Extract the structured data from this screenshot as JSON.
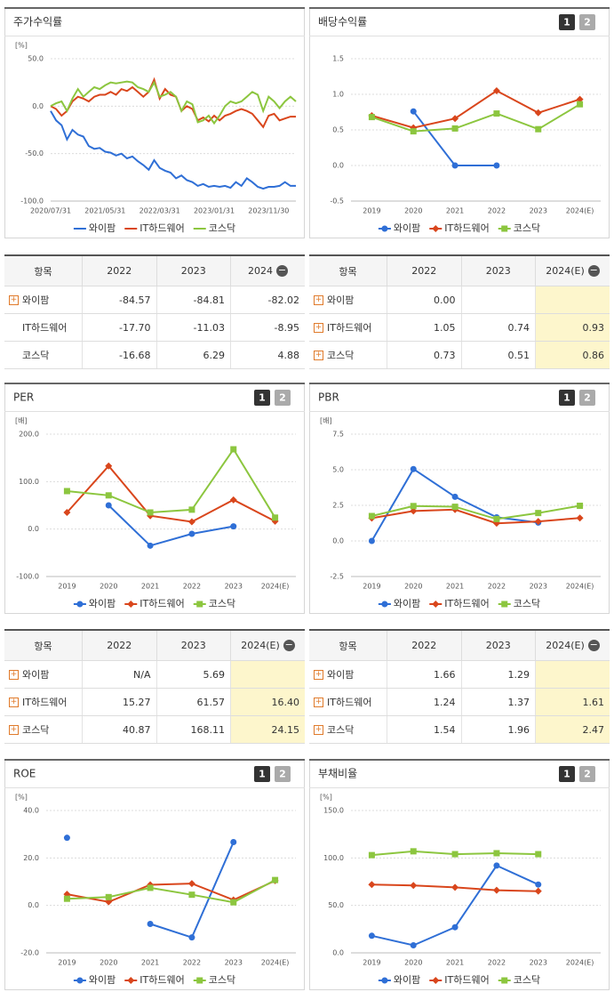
{
  "chart_data": [
    {
      "type": "line",
      "title": "주가수익률",
      "y_unit": "[%]",
      "categories": [
        "2020/07/31",
        null,
        null,
        null,
        null,
        null,
        null,
        null,
        null,
        null,
        "2021/05/31",
        null,
        null,
        null,
        null,
        null,
        null,
        null,
        null,
        null,
        "2022/03/31",
        null,
        null,
        null,
        null,
        null,
        null,
        null,
        null,
        null,
        "2023/01/31",
        null,
        null,
        null,
        null,
        null,
        null,
        null,
        null,
        null,
        "2023/11/30",
        null,
        null,
        null,
        null,
        null
      ],
      "series": [
        {
          "name": "와이팜",
          "color": "#2f6fd6",
          "values": [
            -5,
            -15,
            -20,
            -35,
            -25,
            -30,
            -32,
            -42,
            -45,
            -44,
            -48,
            -49,
            -52,
            -50,
            -55,
            -53,
            -58,
            -62,
            -67,
            -57,
            -65,
            -68,
            -70,
            -76,
            -73,
            -78,
            -80,
            -84,
            -82,
            -85,
            -84,
            -85,
            -84,
            -86,
            -80,
            -84,
            -76,
            -80,
            -85,
            -87,
            -85,
            -85,
            -84,
            -80,
            -84,
            -84
          ]
        },
        {
          "name": "IT하드웨어",
          "color": "#d9461c",
          "values": [
            0,
            -3,
            -10,
            -5,
            5,
            10,
            8,
            5,
            10,
            12,
            12,
            15,
            12,
            18,
            16,
            20,
            15,
            10,
            15,
            28,
            8,
            18,
            12,
            10,
            -5,
            0,
            -3,
            -15,
            -12,
            -16,
            -10,
            -15,
            -10,
            -8,
            -5,
            -3,
            -5,
            -8,
            -15,
            -22,
            -10,
            -8,
            -15,
            -13,
            -11,
            -11
          ]
        },
        {
          "name": "코스닥",
          "color": "#8cc63f",
          "values": [
            0,
            3,
            5,
            -5,
            8,
            18,
            10,
            15,
            20,
            18,
            22,
            25,
            24,
            25,
            26,
            25,
            20,
            18,
            15,
            25,
            10,
            12,
            15,
            10,
            -5,
            5,
            2,
            -17,
            -15,
            -10,
            -18,
            -10,
            0,
            5,
            3,
            5,
            10,
            15,
            12,
            -5,
            10,
            5,
            -2,
            5,
            10,
            5
          ]
        }
      ],
      "ylim": [
        -100,
        50
      ],
      "yticks": [
        {
          "value": -100,
          "label": "-100.0"
        },
        {
          "value": -50,
          "label": "-50.0"
        },
        {
          "value": 0,
          "label": "0.0"
        },
        {
          "value": 50,
          "label": "50.0"
        }
      ],
      "grid": true,
      "legend": "bottom"
    },
    {
      "type": "line",
      "title": "배당수익률",
      "tabs": [
        "1",
        "2"
      ],
      "categories": [
        "2019",
        "2020",
        "2021",
        "2022",
        "2023",
        "2024(E)"
      ],
      "series": [
        {
          "name": "와이팜",
          "color": "#2f6fd6",
          "marker": "circle",
          "values": [
            null,
            0.76,
            0.0,
            0.0,
            null,
            null
          ]
        },
        {
          "name": "IT하드웨어",
          "color": "#d9461c",
          "marker": "diamond",
          "values": [
            0.7,
            0.53,
            0.66,
            1.05,
            0.74,
            0.93
          ]
        },
        {
          "name": "코스닥",
          "color": "#8cc63f",
          "marker": "square",
          "values": [
            0.68,
            0.48,
            0.52,
            0.73,
            0.51,
            0.86
          ]
        }
      ],
      "ylim": [
        -0.5,
        1.5
      ],
      "yticks": [
        {
          "value": -0.5,
          "label": "-0.5"
        },
        {
          "value": 0,
          "label": "0.0"
        },
        {
          "value": 0.5,
          "label": "0.5"
        },
        {
          "value": 1,
          "label": "1.0"
        },
        {
          "value": 1.5,
          "label": "1.5"
        }
      ],
      "grid": true,
      "legend": "bottom"
    },
    {
      "type": "line",
      "title": "PER",
      "tabs": [
        "1",
        "2"
      ],
      "y_unit": "[배]",
      "categories": [
        "2019",
        "2020",
        "2021",
        "2022",
        "2023",
        "2024(E)"
      ],
      "series": [
        {
          "name": "와이팜",
          "color": "#2f6fd6",
          "marker": "circle",
          "values": [
            null,
            50,
            -35,
            -10,
            5.69,
            null
          ]
        },
        {
          "name": "IT하드웨어",
          "color": "#d9461c",
          "marker": "diamond",
          "values": [
            35,
            133,
            28,
            15.27,
            61.57,
            16.4
          ]
        },
        {
          "name": "코스닥",
          "color": "#8cc63f",
          "marker": "square",
          "values": [
            80,
            71,
            35,
            40.87,
            168.11,
            24.15
          ]
        }
      ],
      "ylim": [
        -100,
        200
      ],
      "yticks": [
        {
          "value": -100,
          "label": "-100.0"
        },
        {
          "value": 0,
          "label": "0.0"
        },
        {
          "value": 100,
          "label": "100.0"
        },
        {
          "value": 200,
          "label": "200.0"
        }
      ],
      "grid": true,
      "legend": "bottom"
    },
    {
      "type": "line",
      "title": "PBR",
      "tabs": [
        "1",
        "2"
      ],
      "y_unit": "[배]",
      "categories": [
        "2019",
        "2020",
        "2021",
        "2022",
        "2023",
        "2024(E)"
      ],
      "series": [
        {
          "name": "와이팜",
          "color": "#2f6fd6",
          "marker": "circle",
          "values": [
            0.0,
            5.05,
            3.1,
            1.66,
            1.29,
            null
          ]
        },
        {
          "name": "IT하드웨어",
          "color": "#d9461c",
          "marker": "diamond",
          "values": [
            1.6,
            2.1,
            2.2,
            1.24,
            1.37,
            1.61
          ]
        },
        {
          "name": "코스닥",
          "color": "#8cc63f",
          "marker": "square",
          "values": [
            1.75,
            2.45,
            2.4,
            1.54,
            1.96,
            2.47
          ]
        }
      ],
      "ylim": [
        -2.5,
        7.5
      ],
      "yticks": [
        {
          "value": -2.5,
          "label": "-2.5"
        },
        {
          "value": 0,
          "label": "0.0"
        },
        {
          "value": 2.5,
          "label": "2.5"
        },
        {
          "value": 5,
          "label": "5.0"
        },
        {
          "value": 7.5,
          "label": "7.5"
        }
      ],
      "grid": true,
      "legend": "bottom"
    },
    {
      "type": "line",
      "title": "ROE",
      "tabs": [
        "1",
        "2"
      ],
      "y_unit": "[%]",
      "categories": [
        "2019",
        "2020",
        "2021",
        "2022",
        "2023",
        "2024(E)"
      ],
      "series": [
        {
          "name": "와이팜",
          "color": "#2f6fd6",
          "marker": "circle",
          "values": [
            28.5,
            null,
            -7.8,
            -13.5,
            26.7,
            null
          ]
        },
        {
          "name": "IT하드웨어",
          "color": "#d9461c",
          "marker": "diamond",
          "values": [
            4.7,
            1.5,
            8.7,
            9.2,
            2.3,
            10.4
          ]
        },
        {
          "name": "코스닥",
          "color": "#8cc63f",
          "marker": "square",
          "values": [
            2.8,
            3.5,
            7.4,
            4.5,
            1.3,
            10.7
          ]
        }
      ],
      "ylim": [
        -20,
        40
      ],
      "yticks": [
        {
          "value": -20,
          "label": "-20.0"
        },
        {
          "value": 0,
          "label": "0.0"
        },
        {
          "value": 20,
          "label": "20.0"
        },
        {
          "value": 40,
          "label": "40.0"
        }
      ],
      "grid": true,
      "legend": "bottom"
    },
    {
      "type": "line",
      "title": "부채비율",
      "tabs": [
        "1",
        "2"
      ],
      "y_unit": "[%]",
      "categories": [
        "2019",
        "2020",
        "2021",
        "2022",
        "2023",
        "2024(E)"
      ],
      "series": [
        {
          "name": "와이팜",
          "color": "#2f6fd6",
          "marker": "circle",
          "values": [
            18,
            8,
            27,
            92,
            72,
            null
          ]
        },
        {
          "name": "IT하드웨어",
          "color": "#d9461c",
          "marker": "diamond",
          "values": [
            72,
            71,
            69,
            66,
            65,
            null
          ]
        },
        {
          "name": "코스닥",
          "color": "#8cc63f",
          "marker": "square",
          "values": [
            103,
            107,
            104,
            105,
            104,
            null
          ]
        }
      ],
      "ylim": [
        0,
        150
      ],
      "yticks": [
        {
          "value": 0,
          "label": "0.0"
        },
        {
          "value": 50,
          "label": "50.0"
        },
        {
          "value": 100,
          "label": "100.0"
        },
        {
          "value": 150,
          "label": "150.0"
        }
      ],
      "grid": true,
      "legend": "bottom"
    }
  ],
  "tables": [
    {
      "header": [
        "항목",
        "2022",
        "2023",
        "2024"
      ],
      "rows": [
        {
          "label": "와이팜",
          "cells": [
            "-84.57",
            "-84.81",
            "-82.02"
          ]
        },
        {
          "label": "IT하드웨어",
          "cells": [
            "-17.70",
            "-11.03",
            "-8.95"
          ]
        },
        {
          "label": "코스닥",
          "cells": [
            "-16.68",
            "6.29",
            "4.88"
          ]
        }
      ]
    },
    {
      "header": [
        "항목",
        "2022",
        "2023",
        "2024(E)"
      ],
      "rows": [
        {
          "label": "와이팜",
          "cells": [
            "0.00",
            null,
            null
          ]
        },
        {
          "label": "IT하드웨어",
          "cells": [
            "1.05",
            "0.74",
            "0.93"
          ]
        },
        {
          "label": "코스닥",
          "cells": [
            "0.73",
            "0.51",
            "0.86"
          ]
        }
      ]
    },
    {
      "header": [
        "항목",
        "2022",
        "2023",
        "2024(E)"
      ],
      "rows": [
        {
          "label": "와이팜",
          "cells": [
            "N/A",
            "5.69",
            null
          ]
        },
        {
          "label": "IT하드웨어",
          "cells": [
            "15.27",
            "61.57",
            "16.40"
          ]
        },
        {
          "label": "코스닥",
          "cells": [
            "40.87",
            "168.11",
            "24.15"
          ]
        }
      ]
    },
    {
      "header": [
        "항목",
        "2022",
        "2023",
        "2024(E)"
      ],
      "rows": [
        {
          "label": "와이팜",
          "cells": [
            "1.66",
            "1.29",
            null
          ]
        },
        {
          "label": "IT하드웨어",
          "cells": [
            "1.24",
            "1.37",
            "1.61"
          ]
        },
        {
          "label": "코스닥",
          "cells": [
            "1.54",
            "1.96",
            "2.47"
          ]
        }
      ]
    }
  ]
}
